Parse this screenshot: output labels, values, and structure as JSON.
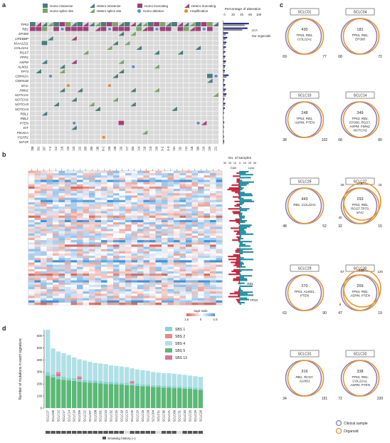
{
  "panels": {
    "a": "a",
    "b": "b",
    "c": "c",
    "d": "d"
  },
  "panel_a": {
    "legend": [
      {
        "label": "Homo missense",
        "color": "#4a7b7a",
        "shape": "square"
      },
      {
        "label": "Hetero missense",
        "color": "#4a7b7a",
        "shape": "triangle"
      },
      {
        "label": "Homo truncating",
        "color": "#a0407a",
        "shape": "square"
      },
      {
        "label": "Hetero truncating",
        "color": "#a0407a",
        "shape": "triangle"
      },
      {
        "label": "Homo splice site",
        "color": "#7da46a",
        "shape": "square"
      },
      {
        "label": "Hetero splice site",
        "color": "#7da46a",
        "shape": "triangle"
      },
      {
        "label": "Homo deletion",
        "color": "#5a8fd0",
        "shape": "circle"
      },
      {
        "label": "Amplification",
        "color": "#e88a2e",
        "shape": "circle"
      }
    ],
    "genes": [
      "TP53",
      "RB1",
      "EP300",
      "CREBBP",
      "KIAA1211",
      "COL22A1",
      "RGS7",
      "FPR1",
      "ASPM",
      "ALMS1",
      "TP73",
      "CDKN2A",
      "CDKN1B",
      "MYC",
      "FMN2",
      "NOTCH1",
      "NOTCH2",
      "NOTCH3",
      "NOTCH4",
      "RBL1",
      "RBL2",
      "PTEN",
      "KIT",
      "PIK3CA",
      "FGFR1",
      "IGF1R"
    ],
    "samples": [
      "SCLC08",
      "SCLC01",
      "SCLC07",
      "SCLC07-2",
      "SCLC12",
      "SCLC16",
      "SCLC15",
      "SCLC23",
      "SCLC22",
      "SCLC05",
      "SCLC09",
      "SCLC30",
      "SCLC30-2",
      "SCLC26",
      "SCLC28",
      "SCLC29",
      "SCLC17",
      "SCLC04",
      "SCLC14",
      "SCLC10",
      "SCLC13",
      "SCLC33",
      "SCLC33-2",
      "SCLC33-3",
      "SCLC31",
      "SCLC32",
      "SCLC11",
      "SCLC18",
      "SCLC06",
      "SCLC19",
      "SCLC25",
      "SCLC21"
    ],
    "bar_axis_title": "Percentage of alteration",
    "bar_axis_ticks": [
      "0",
      "20",
      "40",
      "60",
      "100"
    ],
    "bar_legend": [
      "LCA",
      "Our organoids"
    ]
  },
  "panel_b": {
    "top_axis_title": "No. of samples",
    "top_axis_ticks": [
      "30",
      "20",
      "10",
      "0",
      "10",
      "20",
      "30"
    ],
    "gain_label": "Gain",
    "loss_label": "Loss",
    "annotations": [
      "RB1",
      "TP53"
    ],
    "colorbar_title": "log2 ratio",
    "colorbar_ticks": [
      "1.5",
      "0",
      "-1.5"
    ]
  },
  "panel_c": {
    "venns": [
      {
        "name": "SCLC01",
        "shared": "430",
        "shared_genes": [
          "TP53, RB1,",
          "COL22A1"
        ],
        "left": "69",
        "right": "77"
      },
      {
        "name": "SCLC04",
        "shared": "181",
        "shared_genes": [
          "TP53, RB1,",
          "EP300"
        ],
        "left": "68",
        "right": "72"
      },
      {
        "name": "SCLC10",
        "shared": "248",
        "shared_genes": [
          "TP53, RB1,",
          "ASPM, PTEN"
        ],
        "left": "38",
        "right": "102"
      },
      {
        "name": "SCLC14",
        "shared": "349",
        "shared_genes": [
          "TP53, RB1,",
          "EP300, RGS7,",
          "ASPM, FMN2,",
          "NOTCH3"
        ],
        "left": "68",
        "right": "80"
      },
      {
        "name": "SCLC25",
        "shared": "443",
        "shared_genes": [
          "RB1, COL22A1"
        ],
        "left": "48",
        "right": "52"
      },
      {
        "name": "SCLC27",
        "shared": "293",
        "shared_genes": [
          "TP53, RB1,",
          "RGS7,TP73,",
          "MYC"
        ],
        "left": "32",
        "right": "15",
        "extra": [
          "28",
          "9",
          "16",
          "30"
        ]
      },
      {
        "name": "SCLC29",
        "shared": "270",
        "shared_genes": [
          "TP53, ALMS1,",
          "PTEN"
        ],
        "left": "63",
        "right": "90"
      },
      {
        "name": "SCLC30",
        "shared": "269",
        "shared_genes": [
          "TP53, RB1,",
          "ASPM, PTEN"
        ],
        "left": "47",
        "right": "19",
        "extra": [
          "67",
          "108",
          "120",
          "8"
        ]
      },
      {
        "name": "SCLC31",
        "shared": "316",
        "shared_genes": [
          "RB1, RGS7,",
          "ALMS1"
        ],
        "left": "34",
        "right": "151"
      },
      {
        "name": "SCLC32",
        "shared": "338",
        "shared_genes": [
          "TP53, RB1,",
          "COL22A1,",
          "ASPM, PTEN"
        ],
        "left": "72",
        "right": "220"
      }
    ],
    "legend": [
      {
        "label": "Clinical sample",
        "color": "#8a7fc0"
      },
      {
        "label": "Organoid",
        "color": "#e8962e"
      }
    ]
  },
  "panel_d": {
    "chart_data": {
      "type": "bar",
      "ylabel": "Number of mutations in each signature",
      "yticks": [
        "0",
        "100",
        "200",
        "300",
        "400",
        "500",
        "600"
      ],
      "ylim": [
        0,
        650
      ],
      "series": [
        {
          "name": "SBS 1",
          "color": "#8cd2d2"
        },
        {
          "name": "SBS 2",
          "color": "#e48a8a"
        },
        {
          "name": "SBS 4",
          "color": "#b0e0e6"
        },
        {
          "name": "SBS 5",
          "color": "#5cb877"
        },
        {
          "name": "SBS 13",
          "color": "#d9739a"
        }
      ],
      "categories": [
        "SCLC27",
        "SCLC05",
        "SCLC12",
        "SCLC17",
        "SCLC14",
        "SCLC16",
        "SCLC09",
        "SCLC22",
        "SCLC07",
        "SCLC08",
        "SCLC01",
        "SCLC23",
        "SCLC32",
        "SCLC15",
        "SCLC10",
        "SCLC13",
        "SCLC25",
        "SCLC19",
        "SCLC18",
        "SCLC28",
        "SCLC04",
        "SCLC11",
        "SCLC30",
        "SCLC21",
        "SCLC06",
        "SCLC31",
        "SCLC33",
        "SCLC26",
        "SCLC29",
        "SCLC20"
      ],
      "totals": [
        650,
        495,
        470,
        455,
        440,
        420,
        405,
        395,
        385,
        375,
        370,
        365,
        355,
        350,
        345,
        340,
        330,
        320,
        315,
        310,
        300,
        295,
        290,
        290,
        285,
        280,
        275,
        270,
        265,
        260
      ],
      "sbs5": [
        270,
        255,
        240,
        235,
        230,
        225,
        220,
        215,
        210,
        210,
        205,
        200,
        200,
        195,
        195,
        190,
        190,
        185,
        180,
        180,
        175,
        175,
        170,
        170,
        165,
        165,
        160,
        160,
        155,
        150
      ],
      "sbs1": [
        30,
        25,
        25,
        25,
        20,
        25,
        20,
        20,
        20,
        20,
        20,
        20,
        20,
        20,
        15,
        20,
        15,
        20,
        15,
        15,
        15,
        15,
        15,
        15,
        15,
        15,
        15,
        15,
        15,
        15
      ],
      "sbs13": [
        0,
        0,
        20,
        0,
        0,
        0,
        15,
        0,
        0,
        0,
        0,
        0,
        0,
        0,
        0,
        0,
        10,
        0,
        0,
        0,
        0,
        0,
        0,
        0,
        0,
        0,
        0,
        0,
        0,
        0
      ],
      "sbs2": [
        0,
        0,
        15,
        0,
        0,
        0,
        10,
        0,
        0,
        0,
        0,
        0,
        0,
        0,
        0,
        0,
        10,
        0,
        0,
        0,
        0,
        0,
        0,
        0,
        0,
        0,
        0,
        0,
        0,
        0
      ],
      "smoking": [
        1,
        1,
        1,
        1,
        1,
        1,
        1,
        1,
        1,
        1,
        1,
        1,
        1,
        1,
        1,
        0,
        1,
        1,
        1,
        1,
        1,
        0,
        1,
        1,
        1,
        0,
        1,
        1,
        1,
        1
      ],
      "smoking_legend": "Smoking history (–)"
    }
  }
}
